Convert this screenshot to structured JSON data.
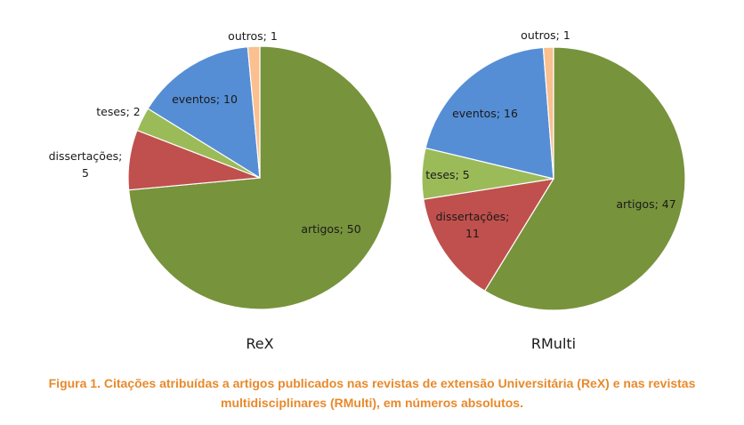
{
  "chart_data": [
    {
      "type": "pie",
      "title": "ReX",
      "slices": [
        {
          "label": "artigos",
          "value": 50
        },
        {
          "label": "dissertações",
          "value": 5
        },
        {
          "label": "teses",
          "value": 2
        },
        {
          "label": "eventos",
          "value": 10
        },
        {
          "label": "outros",
          "value": 1
        }
      ]
    },
    {
      "type": "pie",
      "title": "RMulti",
      "slices": [
        {
          "label": "artigos",
          "value": 47
        },
        {
          "label": "dissertações",
          "value": 11
        },
        {
          "label": "teses",
          "value": 5
        },
        {
          "label": "eventos",
          "value": 16
        },
        {
          "label": "outros",
          "value": 1
        }
      ]
    }
  ],
  "colors": {
    "artigos": "#77933c",
    "dissertações": "#c0504d",
    "teses": "#9bbb59",
    "eventos": "#558ed5",
    "outros": "#fac090"
  },
  "caption": {
    "line1": "Figura 1. Citações atribuídas a artigos publicados nas revistas de extensão Universitária (ReX) e nas revistas",
    "line2": "multidisciplinares (RMulti), em números absolutos."
  }
}
